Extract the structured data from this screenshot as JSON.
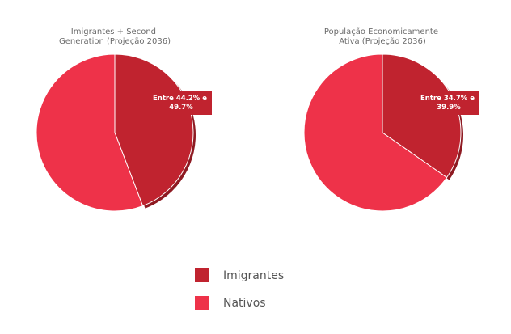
{
  "chart_data": [
    {
      "type": "pie",
      "title": [
        "Imigrantes + Second",
        "Generation (Projeção 2036)"
      ],
      "slices": [
        {
          "name": "Imigrantes",
          "value": 44.2
        },
        {
          "name": "Nativos",
          "value": 55.8
        }
      ],
      "annotation": [
        "Entre 44.2% e",
        "49.7%"
      ]
    },
    {
      "type": "pie",
      "title": [
        "População Economicamente",
        "Ativa (Projeção 2036)"
      ],
      "slices": [
        {
          "name": "Imigrantes",
          "value": 34.7
        },
        {
          "name": "Nativos",
          "value": 65.3
        }
      ],
      "annotation": [
        "Entre 34.7% e",
        "39.9%"
      ]
    }
  ],
  "legend": {
    "placement": "bottom-center",
    "items": [
      {
        "label": "Imigrantes",
        "color": "#c0232f"
      },
      {
        "label": "Nativos",
        "color": "#ee3249"
      }
    ]
  },
  "colors": {
    "Imigrantes": "#c0232f",
    "Nativos": "#ee3249",
    "shadow": "#8e1a22"
  }
}
